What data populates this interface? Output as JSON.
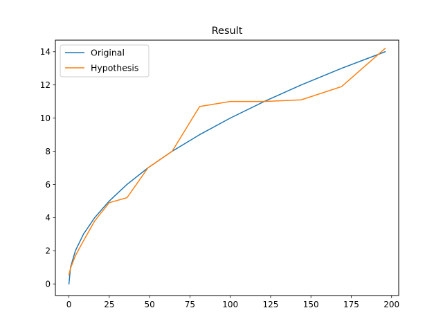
{
  "chart_data": {
    "type": "line",
    "title": "Result",
    "xlabel": "",
    "ylabel": "",
    "xlim": [
      -8.4,
      204.4
    ],
    "ylim": [
      -0.7,
      14.7
    ],
    "xticks": [
      0,
      25,
      50,
      75,
      100,
      125,
      150,
      175,
      200
    ],
    "yticks": [
      0,
      2,
      4,
      6,
      8,
      10,
      12,
      14
    ],
    "grid": false,
    "legend_position": "upper-left",
    "series": [
      {
        "name": "Original",
        "color": "#1f77b4",
        "x": [
          0,
          1,
          4,
          9,
          16,
          25,
          36,
          49,
          64,
          81,
          100,
          121,
          144,
          169,
          196
        ],
        "y": [
          0,
          1,
          2,
          3,
          4,
          5,
          6,
          7,
          8,
          9,
          10,
          11,
          12,
          13,
          14
        ]
      },
      {
        "name": "Hypothesis",
        "color": "#ff7f0e",
        "x": [
          0,
          1,
          4,
          9,
          16,
          25,
          36,
          49,
          64,
          81,
          100,
          121,
          144,
          169,
          196
        ],
        "y": [
          0.55,
          0.95,
          1.7,
          2.6,
          3.8,
          4.9,
          5.2,
          7.0,
          8.0,
          10.7,
          11.0,
          11.0,
          11.1,
          11.9,
          14.2
        ]
      }
    ]
  }
}
